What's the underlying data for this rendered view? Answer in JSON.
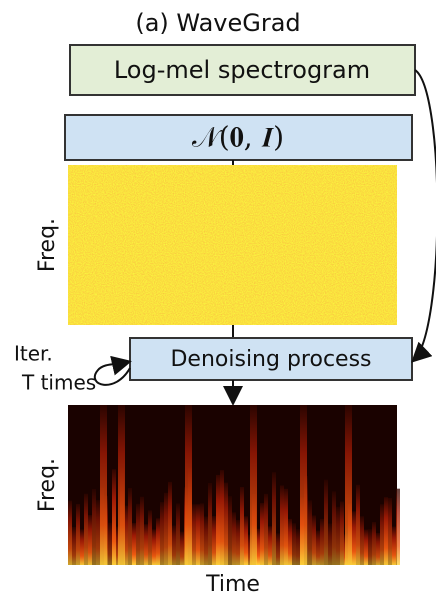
{
  "title": "(a) WaveGrad",
  "nodes": [
    {
      "label": "Log-mel spectrogram"
    },
    {
      "label": "𝒩(𝟎, 𝑰)"
    },
    {
      "label": "Denoising process"
    }
  ],
  "noise_image": {
    "axis_label": "Freq."
  },
  "output_image": {
    "axis_label": "Freq.",
    "x_label": "Time"
  },
  "loop": {
    "label_1": "Iter.",
    "label_2": "T times"
  }
}
